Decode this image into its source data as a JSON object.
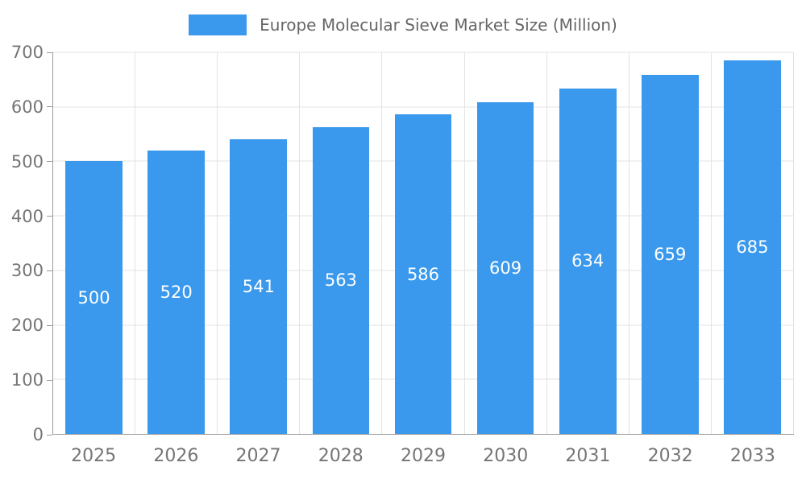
{
  "legend": {
    "label": "Europe Molecular Sieve Market Size (Million)"
  },
  "chart_data": {
    "type": "bar",
    "title": "Europe Molecular Sieve Market Size (Million)",
    "categories": [
      "2025",
      "2026",
      "2027",
      "2028",
      "2029",
      "2030",
      "2031",
      "2032",
      "2033"
    ],
    "values": [
      500,
      520,
      541,
      563,
      586,
      609,
      634,
      659,
      685
    ],
    "xlabel": "",
    "ylabel": "",
    "ylim": [
      0,
      700
    ],
    "ytick_step": 100,
    "grid": true,
    "legend_position": "top-center",
    "bar_label_position": "inside-center"
  },
  "colors": {
    "bar": "#3a99ec",
    "bar_label": "#ffffff",
    "grid": "#e3e3e3",
    "axis": "#9a9a9a",
    "tick_text": "#757575",
    "title_text": "#666666"
  }
}
